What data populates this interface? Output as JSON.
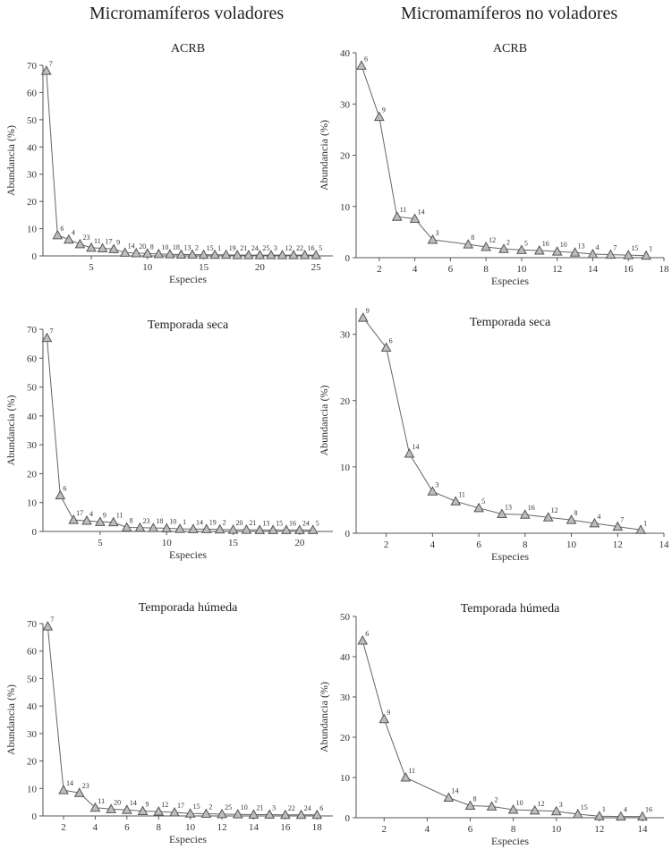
{
  "column_titles": {
    "left": "Micromamíferos voladores",
    "right": "Micromamíferos no voladores"
  },
  "colors": {
    "marker_fill": "#bdbdbd",
    "marker_stroke": "#555555",
    "line": "#666666"
  },
  "chart_data": [
    {
      "type": "line",
      "title": "ACRB",
      "xlabel": "Especies",
      "ylabel": "Abundancia (%)",
      "xlim": [
        0.7,
        26.5
      ],
      "ylim": [
        0,
        70
      ],
      "xticks": [
        5,
        10,
        15,
        20,
        25
      ],
      "yticks": [
        0,
        10,
        20,
        30,
        40,
        50,
        60,
        70
      ],
      "x": [
        1,
        2,
        3,
        4,
        5,
        6,
        7,
        8,
        9,
        10,
        11,
        12,
        13,
        14,
        15,
        16,
        17,
        18,
        19,
        20,
        21,
        22,
        23,
        24,
        25
      ],
      "values": [
        68,
        7.6,
        6,
        4.3,
        3,
        2.8,
        2.5,
        1.2,
        1.0,
        0.9,
        0.7,
        0.6,
        0.5,
        0.5,
        0.4,
        0.4,
        0.4,
        0.3,
        0.3,
        0.3,
        0.3,
        0.3,
        0.3,
        0.3,
        0.3
      ],
      "labels": [
        "7",
        "6",
        "4",
        "23",
        "11",
        "17",
        "9",
        "14",
        "20",
        "8",
        "10",
        "18",
        "13",
        "2",
        "15",
        "1",
        "19",
        "21",
        "24",
        "25",
        "3",
        "12",
        "22",
        "16",
        "5"
      ]
    },
    {
      "type": "line",
      "title": "ACRB",
      "xlabel": "Especies",
      "ylabel": "Abundancia (%)",
      "xlim": [
        0.7,
        18
      ],
      "ylim": [
        0,
        40
      ],
      "xticks": [
        2,
        4,
        6,
        8,
        10,
        12,
        14,
        16,
        18
      ],
      "yticks": [
        0,
        10,
        20,
        30,
        40
      ],
      "x": [
        1,
        2,
        3,
        4,
        5,
        7,
        8,
        9,
        10,
        11,
        12,
        13,
        14,
        15,
        16,
        17
      ],
      "values": [
        37.5,
        27.5,
        8,
        7.6,
        3.5,
        2.6,
        2.1,
        1.7,
        1.5,
        1.4,
        1.2,
        1.0,
        0.7,
        0.6,
        0.5,
        0.4
      ],
      "labels": [
        "6",
        "9",
        "11",
        "14",
        "3",
        "8",
        "12",
        "2",
        "5",
        "16",
        "10",
        "13",
        "4",
        "7",
        "15",
        "1"
      ]
    },
    {
      "type": "line",
      "title": "Temporada seca",
      "xlabel": "Especies",
      "ylabel": "Abundancia (%)",
      "xlim": [
        0.7,
        22.5
      ],
      "ylim": [
        0,
        70
      ],
      "xticks": [
        5,
        10,
        15,
        20
      ],
      "yticks": [
        0,
        10,
        20,
        30,
        40,
        50,
        60,
        70
      ],
      "x": [
        1,
        2,
        3,
        4,
        5,
        6,
        7,
        8,
        9,
        10,
        11,
        12,
        13,
        14,
        15,
        16,
        17,
        18,
        19,
        20,
        21
      ],
      "values": [
        67,
        12.5,
        4,
        3.7,
        3.3,
        3.2,
        1.4,
        1.3,
        1.2,
        1.1,
        0.9,
        0.8,
        0.8,
        0.7,
        0.6,
        0.6,
        0.5,
        0.5,
        0.5,
        0.5,
        0.5
      ],
      "labels": [
        "7",
        "6",
        "17",
        "4",
        "9",
        "11",
        "8",
        "23",
        "18",
        "10",
        "1",
        "14",
        "19",
        "2",
        "20",
        "21",
        "13",
        "15",
        "16",
        "24",
        "5"
      ]
    },
    {
      "type": "line",
      "title": "Temporada seca",
      "xlabel": "Especies",
      "ylabel": "Abundancia (%)",
      "xlim": [
        0.7,
        14
      ],
      "ylim": [
        0,
        34
      ],
      "xticks": [
        2,
        4,
        6,
        8,
        10,
        12,
        14
      ],
      "yticks": [
        0,
        10,
        20,
        30
      ],
      "x": [
        1,
        2,
        3,
        4,
        5,
        6,
        7,
        8,
        9,
        10,
        11,
        12,
        13
      ],
      "values": [
        32.5,
        28,
        12,
        6.3,
        4.8,
        3.8,
        2.9,
        2.8,
        2.4,
        2.0,
        1.5,
        1.0,
        0.5
      ],
      "labels": [
        "9",
        "6",
        "14",
        "3",
        "11",
        "5",
        "13",
        "16",
        "12",
        "8",
        "4",
        "7",
        "1"
      ]
    },
    {
      "type": "line",
      "title": "Temporada húmeda",
      "xlabel": "Especies",
      "ylabel": "Abundancia (%)",
      "xlim": [
        0.7,
        19
      ],
      "ylim": [
        0,
        70
      ],
      "xticks": [
        2,
        4,
        6,
        8,
        10,
        12,
        14,
        16,
        18
      ],
      "yticks": [
        0,
        10,
        20,
        30,
        40,
        50,
        60,
        70
      ],
      "x": [
        1,
        2,
        3,
        4,
        5,
        6,
        7,
        8,
        9,
        10,
        11,
        12,
        13,
        14,
        15,
        16,
        17,
        18
      ],
      "values": [
        69,
        9.4,
        8.4,
        3,
        2.5,
        2.2,
        1.8,
        1.6,
        1.3,
        0.9,
        0.8,
        0.7,
        0.6,
        0.5,
        0.5,
        0.4,
        0.4,
        0.4
      ],
      "labels": [
        "7",
        "14",
        "23",
        "11",
        "20",
        "14",
        "9",
        "12",
        "17",
        "15",
        "2",
        "25",
        "10",
        "21",
        "3",
        "22",
        "24",
        "6"
      ]
    },
    {
      "type": "line",
      "title": "Temporada húmeda",
      "xlabel": "Especies",
      "ylabel": "Abundancia (%)",
      "xlim": [
        0.7,
        15
      ],
      "ylim": [
        0,
        50
      ],
      "xticks": [
        2,
        4,
        6,
        8,
        10,
        12,
        14
      ],
      "yticks": [
        0,
        10,
        20,
        30,
        40,
        50
      ],
      "x": [
        1,
        2,
        3,
        5,
        6,
        7,
        8,
        9,
        10,
        11,
        12,
        13,
        14
      ],
      "values": [
        44,
        24.5,
        10,
        5,
        3,
        2.8,
        2,
        1.8,
        1.6,
        0.9,
        0.4,
        0.3,
        0.3
      ],
      "labels": [
        "6",
        "9",
        "11",
        "14",
        "8",
        "2",
        "10",
        "12",
        "3",
        "15",
        "1",
        "4",
        "16"
      ]
    }
  ]
}
